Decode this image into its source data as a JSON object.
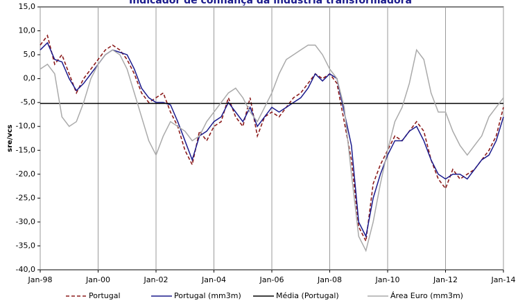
{
  "chart_data": {
    "type": "line",
    "title": "Indicador de confiança da indústria transformadora",
    "y_label": "sre/vcs",
    "x": [
      1998,
      1998.25,
      1998.5,
      1998.75,
      1999,
      1999.25,
      1999.5,
      1999.75,
      2000,
      2000.25,
      2000.5,
      2000.75,
      2001,
      2001.25,
      2001.5,
      2001.75,
      2002,
      2002.25,
      2002.5,
      2002.75,
      2003,
      2003.25,
      2003.5,
      2003.75,
      2004,
      2004.25,
      2004.5,
      2004.75,
      2005,
      2005.25,
      2005.5,
      2005.75,
      2006,
      2006.25,
      2006.5,
      2006.75,
      2007,
      2007.25,
      2007.5,
      2007.75,
      2008,
      2008.25,
      2008.5,
      2008.75,
      2009,
      2009.25,
      2009.5,
      2009.75,
      2010,
      2010.25,
      2010.5,
      2010.75,
      2011,
      2011.25,
      2011.5,
      2011.75,
      2012,
      2012.25,
      2012.5,
      2012.75,
      2013,
      2013.25,
      2013.5,
      2013.75,
      2014
    ],
    "series": [
      {
        "name": "Portugal",
        "color": "#8b1a1a",
        "dashed": true,
        "values": [
          7,
          9,
          3,
          5,
          1,
          -3,
          0,
          2,
          4,
          6,
          7,
          6,
          4,
          1,
          -3,
          -5,
          -4,
          -3,
          -7,
          -10,
          -15,
          -18,
          -11,
          -13,
          -10,
          -9,
          -4,
          -8,
          -10,
          -4,
          -12,
          -8,
          -7,
          -8,
          -6,
          -4,
          -3,
          -1,
          1,
          0,
          1,
          -1,
          -9,
          -17,
          -31,
          -34,
          -22,
          -18,
          -15,
          -12,
          -13,
          -11,
          -9,
          -11,
          -17,
          -21,
          -23,
          -19,
          -21,
          -20,
          -19,
          -17,
          -15,
          -12,
          -6
        ]
      },
      {
        "name": "Portugal (mm3m)",
        "color": "#1a1a8c",
        "dashed": false,
        "values": [
          6,
          7.5,
          4,
          3.5,
          0,
          -2.5,
          -1,
          1,
          3,
          5,
          6,
          5.5,
          5,
          2,
          -2,
          -4,
          -5,
          -5,
          -5.5,
          -9,
          -13,
          -17,
          -12,
          -11,
          -9,
          -8,
          -5,
          -7,
          -9,
          -6,
          -10,
          -8,
          -6,
          -7,
          -6,
          -5,
          -4,
          -2,
          1,
          -0.5,
          1,
          0,
          -7,
          -14,
          -30,
          -33,
          -25,
          -20,
          -16,
          -13,
          -13,
          -11,
          -10,
          -13,
          -17,
          -20,
          -21,
          -20,
          -20,
          -21,
          -19,
          -17,
          -16,
          -13,
          -8
        ]
      },
      {
        "name": "Média (Portugal)",
        "color": "#000000",
        "dashed": false,
        "values": [
          -5.2,
          -5.2,
          -5.2,
          -5.2,
          -5.2,
          -5.2,
          -5.2,
          -5.2,
          -5.2,
          -5.2,
          -5.2,
          -5.2,
          -5.2,
          -5.2,
          -5.2,
          -5.2,
          -5.2,
          -5.2,
          -5.2,
          -5.2,
          -5.2,
          -5.2,
          -5.2,
          -5.2,
          -5.2,
          -5.2,
          -5.2,
          -5.2,
          -5.2,
          -5.2,
          -5.2,
          -5.2,
          -5.2,
          -5.2,
          -5.2,
          -5.2,
          -5.2,
          -5.2,
          -5.2,
          -5.2,
          -5.2,
          -5.2,
          -5.2,
          -5.2,
          -5.2,
          -5.2,
          -5.2,
          -5.2,
          -5.2,
          -5.2,
          -5.2,
          -5.2,
          -5.2,
          -5.2,
          -5.2,
          -5.2,
          -5.2,
          -5.2,
          -5.2,
          -5.2,
          -5.2,
          -5.2,
          -5.2,
          -5.2,
          -5.2
        ]
      },
      {
        "name": "Área Euro (mm3m)",
        "color": "#aaaaaa",
        "dashed": false,
        "values": [
          2,
          3,
          1,
          -8,
          -10,
          -9,
          -5,
          0,
          3,
          5,
          6,
          5,
          2,
          -3,
          -8,
          -13,
          -16,
          -12,
          -9,
          -10,
          -11,
          -13,
          -12,
          -9,
          -7,
          -5,
          -3,
          -2,
          -4,
          -7,
          -9,
          -6,
          -3,
          1,
          4,
          5,
          6,
          7,
          7,
          5,
          2,
          0,
          -6,
          -20,
          -33,
          -36,
          -30,
          -22,
          -15,
          -9,
          -6,
          -1,
          6,
          4,
          -3,
          -7,
          -7,
          -11,
          -14,
          -16,
          -14,
          -12,
          -8,
          -6,
          -4
        ]
      }
    ],
    "xlim": [
      1998,
      2014
    ],
    "xticks": [
      {
        "value": 1998,
        "label": "Jan-98"
      },
      {
        "value": 2000,
        "label": "Jan-00"
      },
      {
        "value": 2002,
        "label": "Jan-02"
      },
      {
        "value": 2004,
        "label": "Jan-04"
      },
      {
        "value": 2006,
        "label": "Jan-06"
      },
      {
        "value": 2008,
        "label": "Jan-08"
      },
      {
        "value": 2010,
        "label": "Jan-10"
      },
      {
        "value": 2012,
        "label": "Jan-12"
      },
      {
        "value": 2014,
        "label": "Jan-14"
      }
    ],
    "ylim": [
      -40,
      15
    ],
    "yticks": [
      {
        "value": 15,
        "label": "15,0"
      },
      {
        "value": 10,
        "label": "10,0"
      },
      {
        "value": 5,
        "label": "5,0"
      },
      {
        "value": 0,
        "label": "0,0"
      },
      {
        "value": -5,
        "label": "-5,0"
      },
      {
        "value": -10,
        "label": "-10,0"
      },
      {
        "value": -15,
        "label": "-15,0"
      },
      {
        "value": -20,
        "label": "-20,0"
      },
      {
        "value": -25,
        "label": "-25,0"
      },
      {
        "value": -30,
        "label": "-30,0"
      },
      {
        "value": -35,
        "label": "-35,0"
      },
      {
        "value": -40,
        "label": "-40,0"
      }
    ],
    "xgrid": true
  }
}
